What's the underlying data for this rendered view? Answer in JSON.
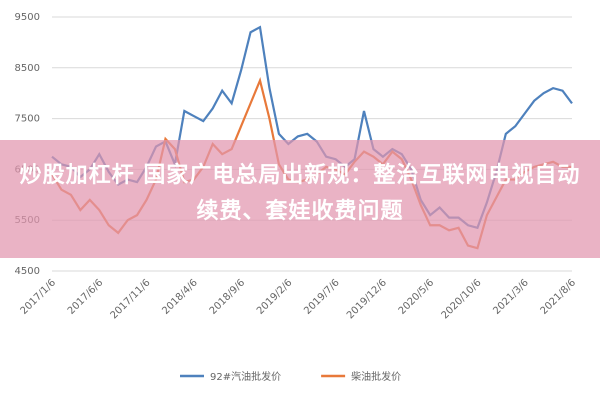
{
  "chart_data": {
    "type": "line",
    "headline": "炒股加杠杆 国家广电总局出新规：整治互联网电视自动续费、套娃收费问题",
    "categories": [
      "2017/1/6",
      null,
      null,
      null,
      null,
      "2017/6/6",
      null,
      null,
      null,
      null,
      "2017/11/6",
      null,
      null,
      null,
      null,
      "2018/4/6",
      null,
      null,
      null,
      null,
      "2018/9/6",
      null,
      null,
      null,
      null,
      "2019/2/6",
      null,
      null,
      null,
      null,
      "2019/7/6",
      null,
      null,
      null,
      null,
      "2019/12/6",
      null,
      null,
      null,
      null,
      "2020/5/6",
      null,
      null,
      null,
      null,
      "2020/10/6",
      null,
      null,
      null,
      null,
      "2021/3/6",
      null,
      null,
      null,
      null,
      "2021/8/6"
    ],
    "series": [
      {
        "name": "92#汽油批发价",
        "color": "#4e81bd",
        "values": [
          6750,
          6600,
          6550,
          6350,
          6500,
          6800,
          6450,
          6200,
          6300,
          6250,
          6550,
          6950,
          7050,
          6600,
          7650,
          7550,
          7450,
          7700,
          8050,
          7800,
          8450,
          9200,
          9300,
          8100,
          7200,
          7000,
          7150,
          7200,
          7050,
          6750,
          6700,
          6550,
          6700,
          7650,
          6900,
          6750,
          6900,
          6800,
          6500,
          5900,
          5600,
          5750,
          5550,
          5550,
          5400,
          5350,
          5850,
          6450,
          7200,
          7350,
          7600,
          7850,
          8000,
          8100,
          8050,
          7800
        ]
      },
      {
        "name": "柴油批发价",
        "color": "#e8793a",
        "values": [
          6400,
          6100,
          6000,
          5700,
          5900,
          5700,
          5400,
          5250,
          5500,
          5600,
          5900,
          6300,
          7100,
          6900,
          6250,
          6300,
          6550,
          7000,
          6800,
          6900,
          7350,
          7800,
          8250,
          7500,
          6600,
          6300,
          6250,
          6300,
          6400,
          6550,
          6500,
          6400,
          6650,
          6850,
          6750,
          6600,
          6850,
          6700,
          6300,
          5800,
          5400,
          5400,
          5300,
          5350,
          5000,
          4950,
          5600,
          5950,
          6300,
          6300,
          6450,
          6550,
          6600,
          6650,
          6550,
          6550
        ]
      }
    ],
    "ylim": [
      4500,
      9500
    ],
    "yticks": [
      4500,
      5500,
      6500,
      7500,
      8500,
      9500
    ],
    "grid": true
  }
}
